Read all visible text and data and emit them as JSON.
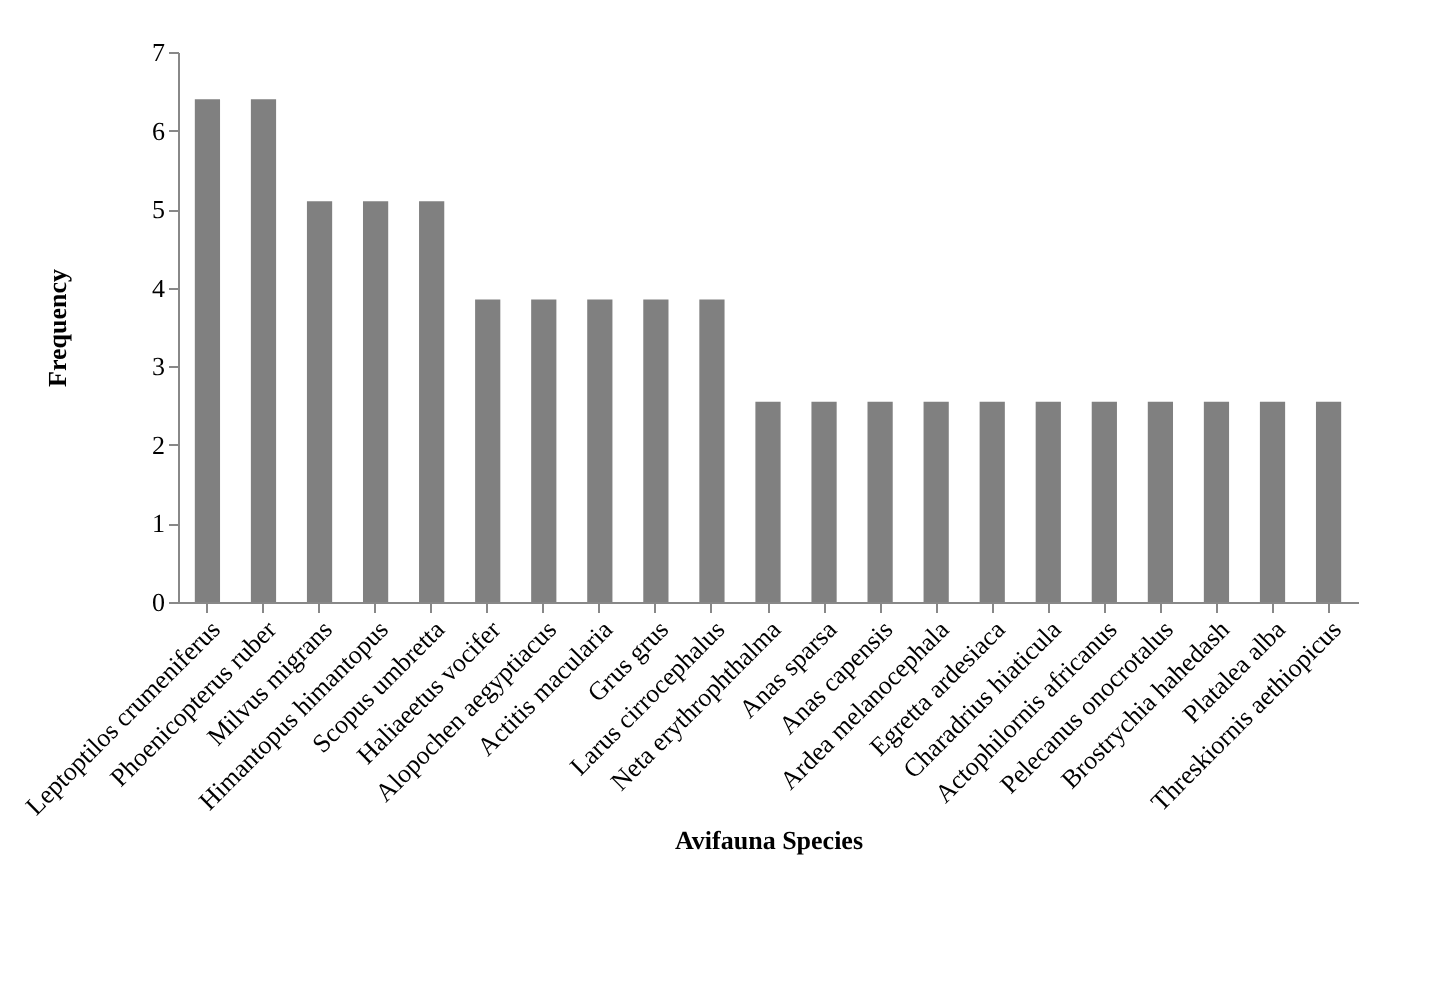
{
  "chart_data": {
    "type": "bar",
    "xlabel": "Avifauna Species",
    "ylabel": "Frequency",
    "categories": [
      "Leptoptilos crumeniferus",
      "Phoenicopterus ruber",
      "Milvus migrans",
      "Himantopus himantopus",
      "Scopus umbretta",
      "Haliaeetus vocifer",
      "Alopochen aegyptiacus",
      "Actitis macularia",
      "Grus grus",
      "Larus cirrocephalus",
      "Neta erythrophthalma",
      "Anas sparsa",
      "Anas capensis",
      "Ardea melanocephala",
      "Egretta ardesiaca",
      "Charadrius hiaticula",
      "Actophilornis africanus",
      "Pelecanus onocrotalus",
      "Brostrychia hahedash",
      "Platalea alba",
      "Threskiornis aethiopicus"
    ],
    "values": [
      6.4,
      6.4,
      5.1,
      5.1,
      5.1,
      3.85,
      3.85,
      3.85,
      3.85,
      3.85,
      2.55,
      2.55,
      2.55,
      2.55,
      2.55,
      2.55,
      2.55,
      2.55,
      2.55,
      2.55,
      2.55
    ],
    "color": "#808080",
    "ylim": [
      0,
      7
    ],
    "yticks": [
      0,
      1,
      2,
      3,
      4,
      5,
      6,
      7
    ],
    "grid": false
  }
}
